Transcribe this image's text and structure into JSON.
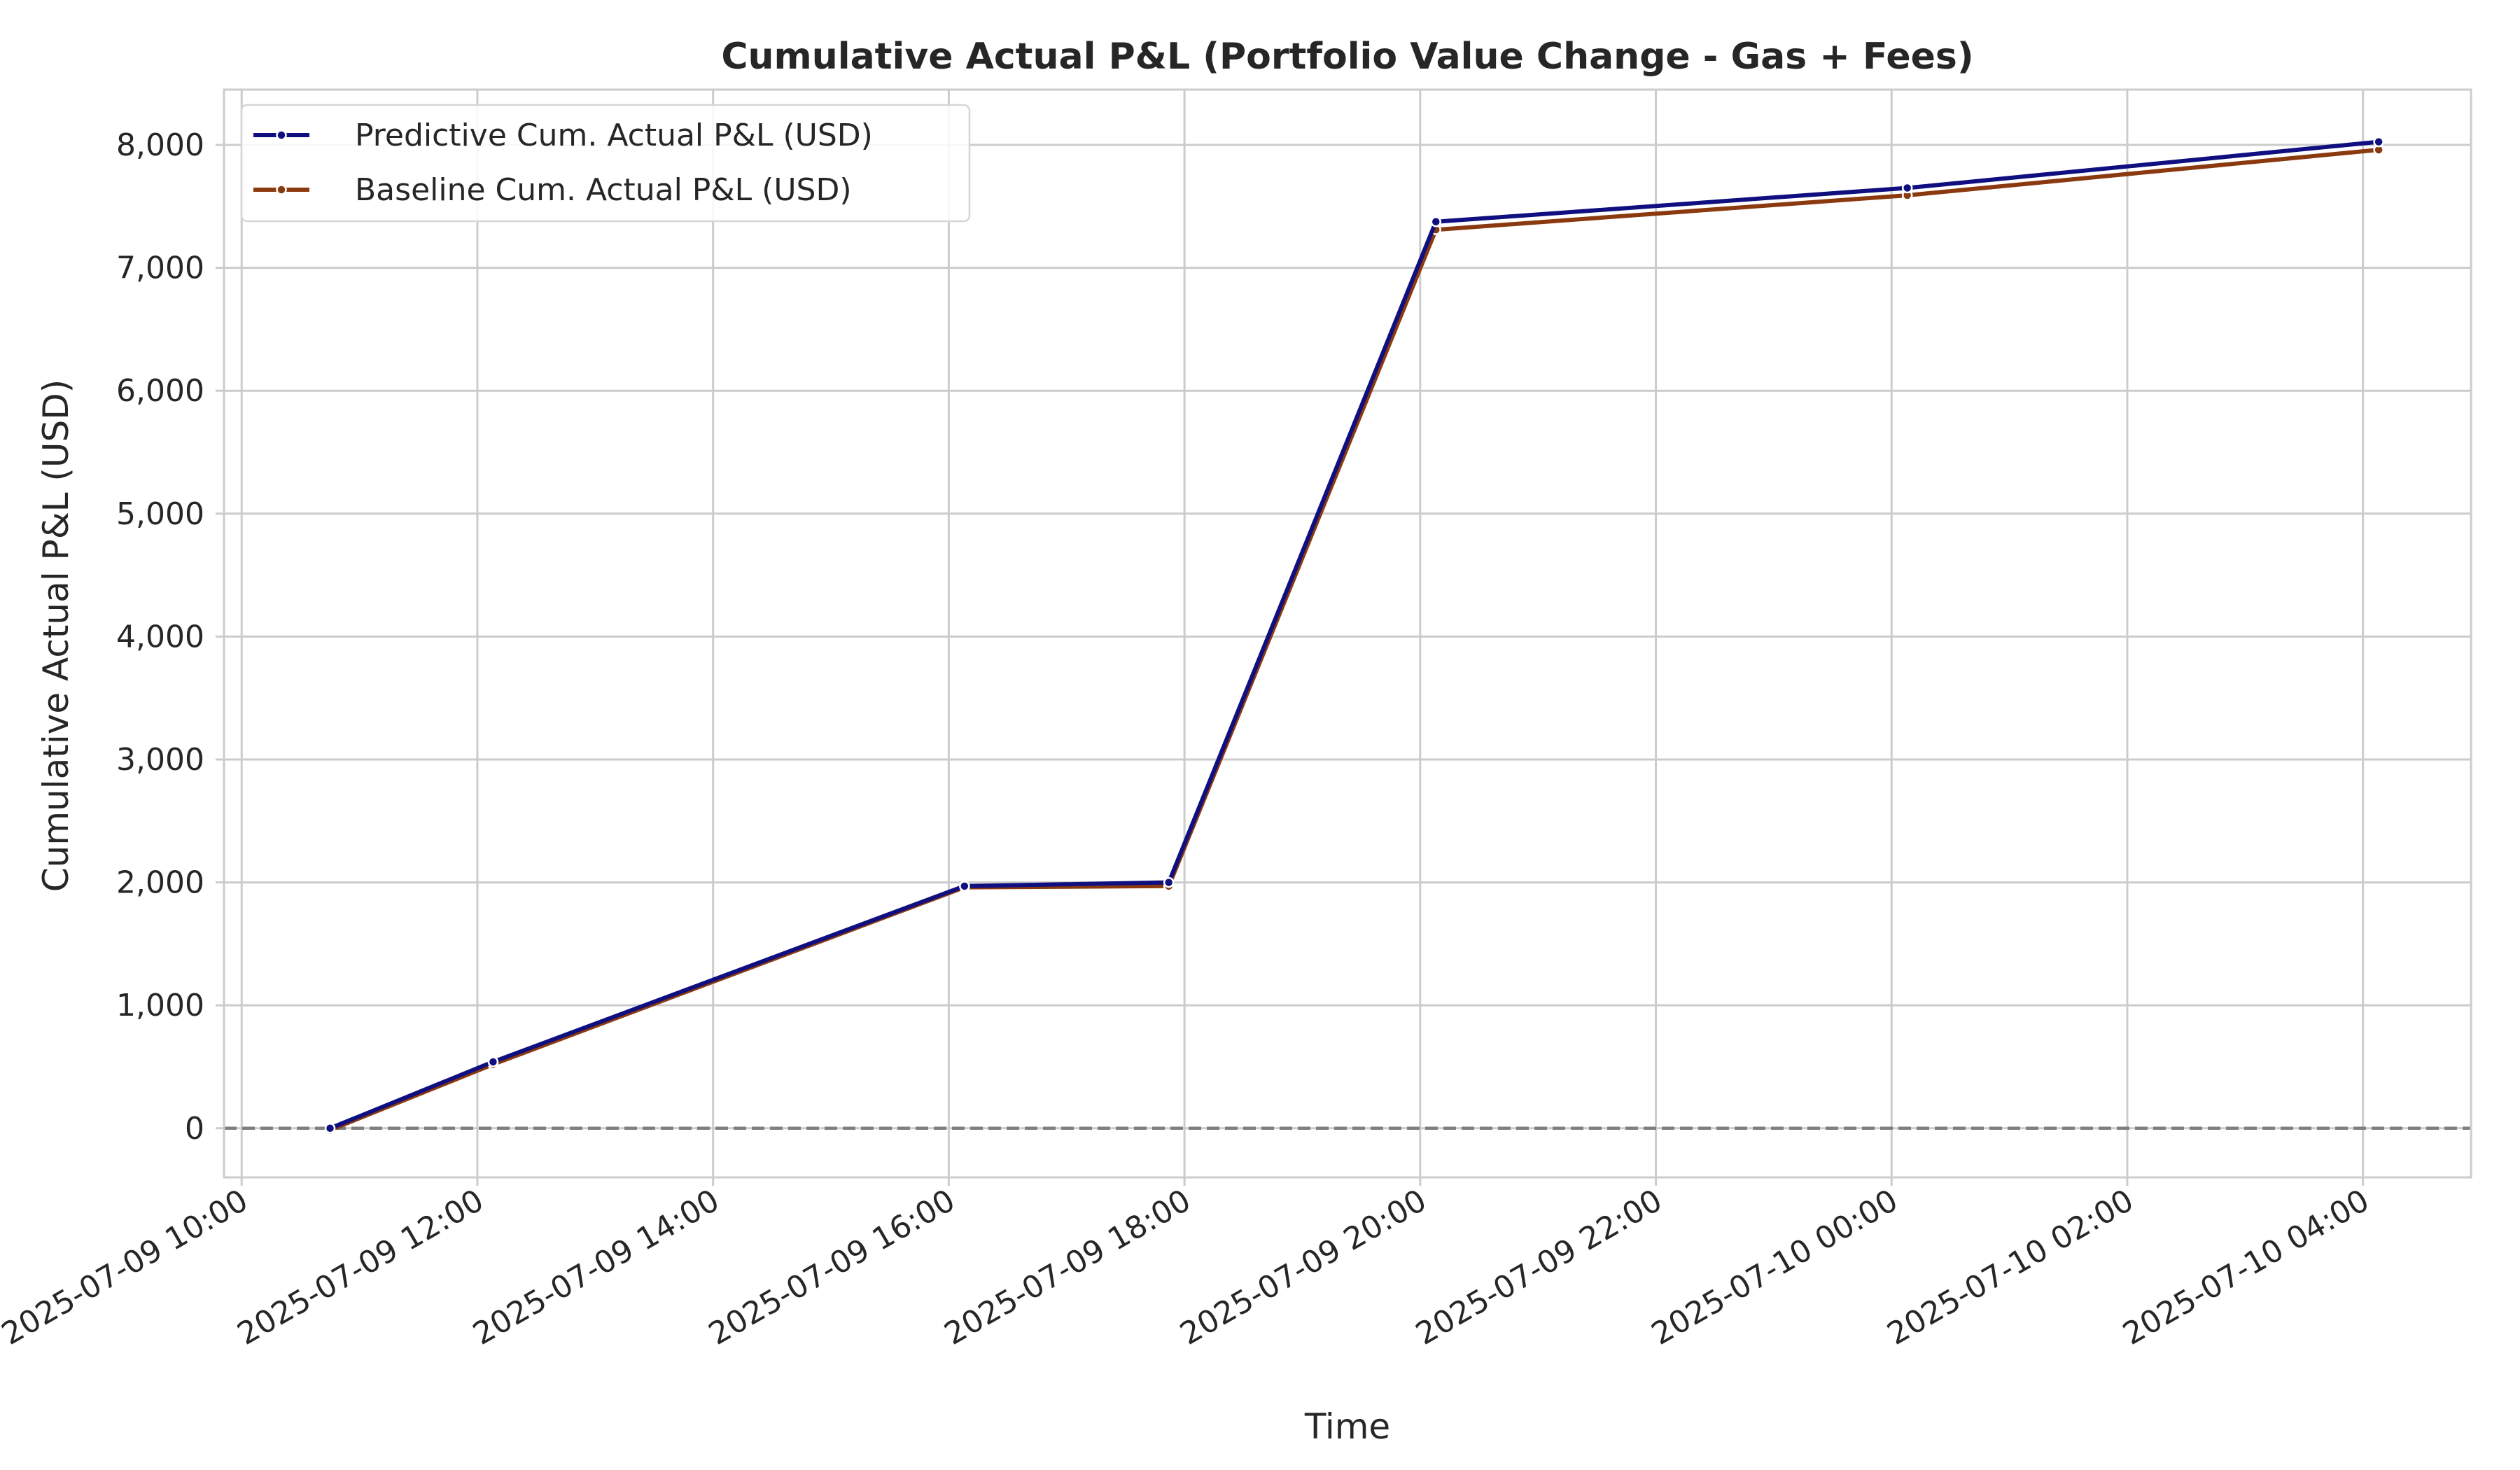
{
  "chart_data": {
    "type": "line",
    "title": "Cumulative Actual P&L (Portfolio Value Change - Gas + Fees)",
    "xlabel": "Time",
    "ylabel": "Cumulative Actual P&L (USD)",
    "x_tick_labels": [
      "2025-07-09 10:00",
      "2025-07-09 12:00",
      "2025-07-09 14:00",
      "2025-07-09 16:00",
      "2025-07-09 18:00",
      "2025-07-09 20:00",
      "2025-07-09 22:00",
      "2025-07-10 00:00",
      "2025-07-10 02:00",
      "2025-07-10 04:00"
    ],
    "y_tick_labels": [
      "0",
      "1,000",
      "2,000",
      "3,000",
      "4,000",
      "5,000",
      "6,000",
      "7,000",
      "8,000"
    ],
    "y_ticks": [
      0,
      1000,
      2000,
      3000,
      4000,
      5000,
      6000,
      7000,
      8000
    ],
    "xlim": [
      "2025-07-09 09:51",
      "2025-07-10 04:55"
    ],
    "ylim": [
      -400,
      8450
    ],
    "grid": true,
    "legend_position": "top-left",
    "reference_line": {
      "y": 0,
      "style": "dashed",
      "color": "#7f7f7f"
    },
    "series": [
      {
        "name": "Predictive Cum. Actual P&L (USD)",
        "color": "#0f0f80",
        "points": [
          {
            "x": "2025-07-09 10:45",
            "y": 0
          },
          {
            "x": "2025-07-09 12:08",
            "y": 540
          },
          {
            "x": "2025-07-09 16:08",
            "y": 1970
          },
          {
            "x": "2025-07-09 17:52",
            "y": 2000
          },
          {
            "x": "2025-07-09 20:08",
            "y": 7375
          },
          {
            "x": "2025-07-10 00:08",
            "y": 7650
          },
          {
            "x": "2025-07-10 04:08",
            "y": 8025
          }
        ]
      },
      {
        "name": "Baseline Cum. Actual P&L (USD)",
        "color": "#8b3a0f",
        "points": [
          {
            "x": "2025-07-09 10:45",
            "y": -15
          },
          {
            "x": "2025-07-09 12:08",
            "y": 520
          },
          {
            "x": "2025-07-09 16:08",
            "y": 1960
          },
          {
            "x": "2025-07-09 17:52",
            "y": 1970
          },
          {
            "x": "2025-07-09 20:08",
            "y": 7310
          },
          {
            "x": "2025-07-10 00:08",
            "y": 7590
          },
          {
            "x": "2025-07-10 04:08",
            "y": 7960
          }
        ]
      }
    ]
  }
}
